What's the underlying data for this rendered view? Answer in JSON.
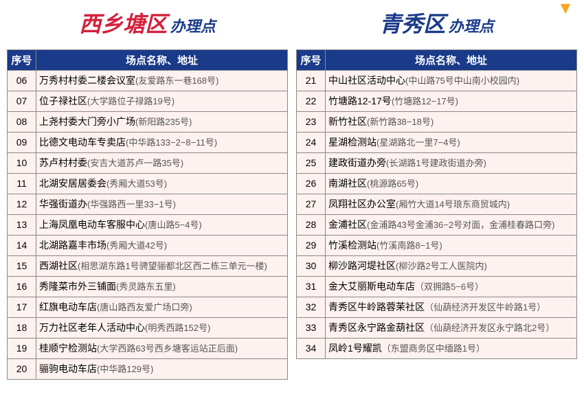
{
  "decor": {
    "arrow_color": "#f5a623"
  },
  "colors": {
    "header_bg": "#1a3a8a",
    "header_fg": "#ffffff",
    "row_bg": "#fdf2ef",
    "border": "#888888",
    "left_region": "#d4213d",
    "right_region": "#1a3a8a",
    "suffix": "#1a3a8a"
  },
  "typography": {
    "region_fontsize": 32,
    "suffix_fontsize": 22,
    "header_fontsize": 15,
    "cell_fontsize": 14
  },
  "headers": {
    "col_num": "序号",
    "col_name": "场点名称、地址"
  },
  "left": {
    "region": "西乡塘区",
    "suffix": "办理点",
    "rows": [
      {
        "n": "06",
        "name": "万秀村村委二楼会议室",
        "addr": "(友爱路东一巷168号)"
      },
      {
        "n": "07",
        "name": "位子禄社区",
        "addr": "(大学路位子禄路19号)"
      },
      {
        "n": "08",
        "name": "上尧村委大门旁小广场",
        "addr": "(新阳路235号)"
      },
      {
        "n": "09",
        "name": "比德文电动车专卖店",
        "addr": "(中华路133−2−8−11号)"
      },
      {
        "n": "10",
        "name": "苏卢村村委",
        "addr": "(安吉大道苏卢一路35号)"
      },
      {
        "n": "11",
        "name": "北湖安居居委会",
        "addr": "(秀厢大道53号)"
      },
      {
        "n": "12",
        "name": "华强街道办",
        "addr": "(华强路西一里33−1号)"
      },
      {
        "n": "13",
        "name": "上海凤凰电动车客服中心",
        "addr": "(唐山路5−4号)"
      },
      {
        "n": "14",
        "name": "北湖路嘉丰市场",
        "addr": "(秀厢大道42号)"
      },
      {
        "n": "15",
        "name": "西湖社区",
        "addr": "(相思湖东路1号骋望骊都北区西二栋三单元一楼)"
      },
      {
        "n": "16",
        "name": "秀隆菜市外三铺面",
        "addr": "(秀灵路东五里)"
      },
      {
        "n": "17",
        "name": "红旗电动车店",
        "addr": "(唐山路西友爱广场口旁)"
      },
      {
        "n": "18",
        "name": "万力社区老年人活动中心",
        "addr": "(明秀西路152号)"
      },
      {
        "n": "19",
        "name": "桂顺宁检测站",
        "addr": "(大学西路63号西乡塘客运站正后面)"
      },
      {
        "n": "20",
        "name": "骊驹电动车店",
        "addr": "(中华路129号)"
      }
    ]
  },
  "right": {
    "region": "青秀区",
    "suffix": "办理点",
    "rows": [
      {
        "n": "21",
        "name": "中山社区活动中心",
        "addr": "(中山路75号中山南小校园内)"
      },
      {
        "n": "22",
        "name": "竹塘路12-17号",
        "addr": "(竹塘路12−17号)"
      },
      {
        "n": "23",
        "name": "新竹社区",
        "addr": "(新竹路38−18号)"
      },
      {
        "n": "24",
        "name": "星湖检测站",
        "addr": "(星湖路北一里7−4号)"
      },
      {
        "n": "25",
        "name": "建政街道办旁",
        "addr": "(长湖路1号建政街道办旁)"
      },
      {
        "n": "26",
        "name": "南湖社区",
        "addr": "(桃源路65号)"
      },
      {
        "n": "27",
        "name": "凤翔社区办公室",
        "addr": "(厢竹大道14号琅东商贸城内)"
      },
      {
        "n": "28",
        "name": "金浦社区",
        "addr": "(金浦路43号金浦36−2号对面，金浦桂春路口旁)"
      },
      {
        "n": "29",
        "name": "竹溪检测站",
        "addr": "(竹溪南路8−1号)"
      },
      {
        "n": "30",
        "name": "柳沙路河堤社区",
        "addr": "(柳沙路2号工人医院内)"
      },
      {
        "n": "31",
        "name": "金大艾丽斯电动车店",
        "addr": "（双拥路5−6号）"
      },
      {
        "n": "32",
        "name": "青秀区牛岭路蓉茉社区",
        "addr": "（仙葫经济开发区牛岭路1号）"
      },
      {
        "n": "33",
        "name": "青秀区永宁路金葫社区",
        "addr": "（仙葫经济开发区永宁路北2号）"
      },
      {
        "n": "34",
        "name": "凤岭1号耀凯",
        "addr": "（东盟商务区中缅路1号）"
      }
    ]
  }
}
